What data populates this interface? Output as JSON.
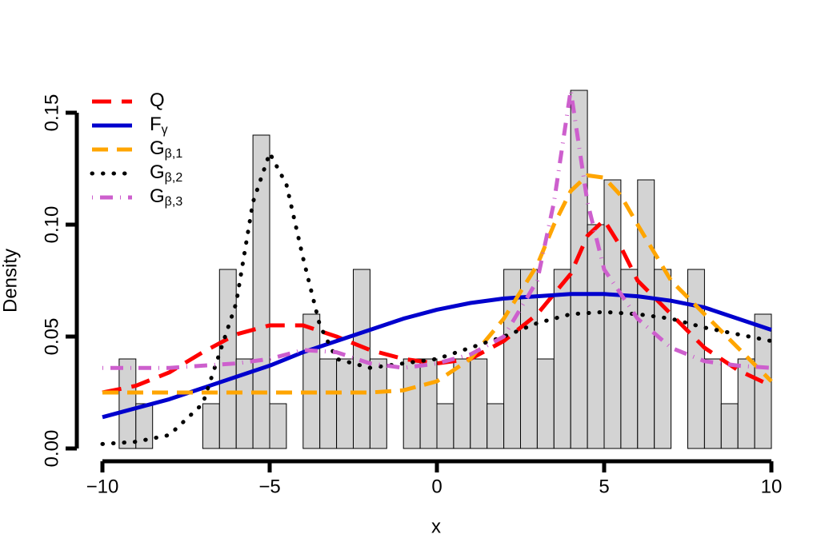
{
  "chart_data": {
    "type": "histogram",
    "x_label": "x",
    "y_label": "Density",
    "xlim": [
      -10,
      10
    ],
    "ylim": [
      0,
      0.15
    ],
    "xticks": [
      {
        "value": -10,
        "label": "−10"
      },
      {
        "value": -5,
        "label": "−5"
      },
      0,
      5,
      10
    ],
    "yticks": [
      {
        "value": 0,
        "label": "0.00"
      },
      {
        "value": 0.05,
        "label": "0.05"
      },
      {
        "value": 0.1,
        "label": "0.10"
      },
      {
        "value": 0.15,
        "label": "0.15"
      }
    ],
    "grid": false,
    "legend": "topleft",
    "histogram": {
      "color": "#d3d3d3",
      "bins": [
        -10,
        -9.5,
        -9,
        -8.5,
        -8,
        -7.5,
        -7,
        -6.5,
        -6,
        -5.5,
        -5,
        -4.5,
        -4,
        -3.5,
        -3,
        -2.5,
        -2,
        -1.5,
        -1,
        -0.5,
        0,
        0.5,
        1,
        1.5,
        2,
        2.5,
        3,
        3.5,
        4,
        4.5,
        5,
        5.5,
        6,
        6.5,
        7,
        7.5,
        8,
        8.5,
        9,
        9.5,
        10
      ],
      "values": [
        0,
        0.04,
        0.02,
        0,
        0,
        0,
        0.02,
        0.08,
        0.04,
        0.14,
        0.02,
        0,
        0.06,
        0.04,
        0.04,
        0.08,
        0.04,
        0,
        0.04,
        0.04,
        0.02,
        0.04,
        0.04,
        0.02,
        0.08,
        0.08,
        0.04,
        0.08,
        0.16,
        0.1,
        0.12,
        0.08,
        0.12,
        0.08,
        0,
        0.08,
        0.04,
        0.02,
        0.04,
        0.06
      ]
    },
    "series": [
      {
        "name": "Q",
        "color": "#ff0000",
        "linestyle": "dashed",
        "x": [
          -10,
          -9,
          -8,
          -7,
          -6,
          -5,
          -4,
          -3,
          -2,
          -1,
          0,
          1,
          2,
          3,
          4,
          4.5,
          5,
          5.5,
          6,
          7,
          8,
          9,
          10
        ],
        "values": [
          0.025,
          0.028,
          0.034,
          0.043,
          0.051,
          0.055,
          0.055,
          0.05,
          0.044,
          0.04,
          0.038,
          0.04,
          0.048,
          0.06,
          0.078,
          0.095,
          0.102,
          0.09,
          0.075,
          0.06,
          0.045,
          0.035,
          0.028
        ]
      },
      {
        "name": "F",
        "sub": "γ",
        "color": "#0000cd",
        "linestyle": "solid",
        "x": [
          -10,
          -9,
          -8,
          -7,
          -6,
          -5,
          -4,
          -3,
          -2,
          -1,
          0,
          1,
          2,
          3,
          4,
          5,
          6,
          7,
          8,
          9,
          10
        ],
        "values": [
          0.014,
          0.018,
          0.022,
          0.027,
          0.032,
          0.037,
          0.043,
          0.048,
          0.053,
          0.058,
          0.062,
          0.065,
          0.067,
          0.068,
          0.069,
          0.069,
          0.068,
          0.066,
          0.063,
          0.058,
          0.053
        ]
      },
      {
        "name": "G",
        "sub": "β,1",
        "color": "#ffa500",
        "linestyle": "longdash",
        "x": [
          -10,
          -8,
          -6,
          -4,
          -2,
          -1,
          0,
          1,
          2,
          3,
          3.5,
          4,
          4.5,
          5,
          5.5,
          6,
          7,
          8,
          9,
          10
        ],
        "values": [
          0.025,
          0.025,
          0.025,
          0.025,
          0.025,
          0.026,
          0.03,
          0.04,
          0.058,
          0.082,
          0.1,
          0.115,
          0.122,
          0.121,
          0.113,
          0.1,
          0.075,
          0.06,
          0.045,
          0.03
        ]
      },
      {
        "name": "G",
        "sub": "β,2",
        "color": "#000000",
        "linestyle": "dotted",
        "x": [
          -10,
          -9,
          -8,
          -7,
          -6,
          -5.5,
          -5,
          -4.5,
          -4,
          -3.5,
          -3,
          -2,
          -1,
          0,
          1,
          2,
          3,
          4,
          5,
          6,
          7,
          8,
          9,
          10
        ],
        "values": [
          0.002,
          0.003,
          0.006,
          0.02,
          0.065,
          0.11,
          0.132,
          0.118,
          0.085,
          0.055,
          0.04,
          0.036,
          0.038,
          0.04,
          0.045,
          0.05,
          0.056,
          0.06,
          0.061,
          0.06,
          0.058,
          0.054,
          0.051,
          0.048
        ]
      },
      {
        "name": "G",
        "sub": "β,3",
        "color": "#cd5fcd",
        "linestyle": "dotdash",
        "x": [
          -10,
          -9,
          -8,
          -7,
          -6,
          -5,
          -4,
          -3,
          -2,
          -1,
          0,
          1,
          2,
          3,
          3.5,
          4,
          4.5,
          5,
          6,
          7,
          8,
          9,
          10
        ],
        "values": [
          0.036,
          0.036,
          0.036,
          0.037,
          0.038,
          0.04,
          0.044,
          0.043,
          0.038,
          0.036,
          0.038,
          0.042,
          0.05,
          0.075,
          0.11,
          0.16,
          0.11,
          0.08,
          0.058,
          0.045,
          0.039,
          0.037,
          0.036
        ]
      }
    ]
  }
}
